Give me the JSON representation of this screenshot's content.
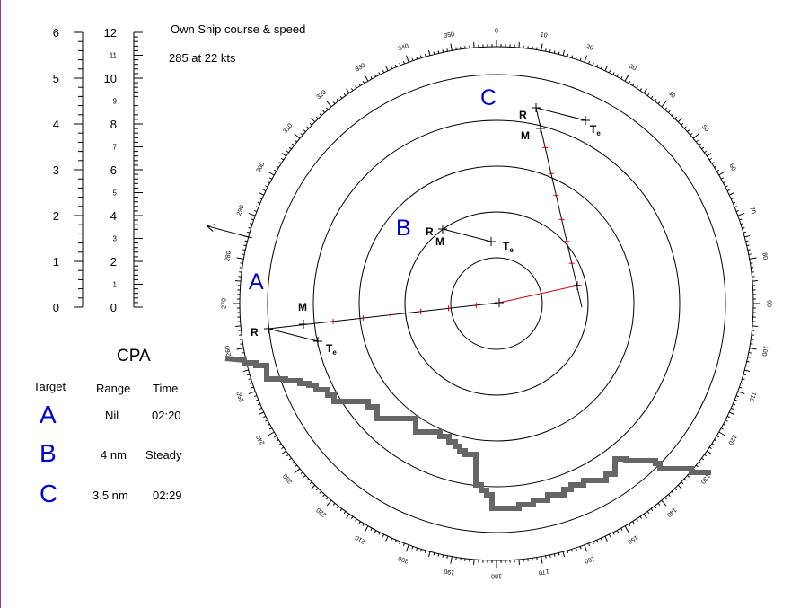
{
  "header": {
    "title": "Own Ship course & speed",
    "value": "285  at 22 kts"
  },
  "scales": {
    "left_labels": [
      "0",
      "1",
      "2",
      "3",
      "4",
      "5",
      "6"
    ],
    "right_labels": [
      "0",
      "1",
      "2",
      "3",
      "4",
      "5",
      "6",
      "7",
      "8",
      "9",
      "10",
      "11",
      "12"
    ]
  },
  "plot": {
    "bearing_labels": [
      "0",
      "10",
      "20",
      "30",
      "40",
      "50",
      "60",
      "70",
      "80",
      "90",
      "100",
      "110",
      "120",
      "130",
      "140",
      "150",
      "160",
      "170",
      "180",
      "190",
      "200",
      "210",
      "220",
      "230",
      "240",
      "250",
      "260",
      "270",
      "280",
      "290",
      "300",
      "310",
      "320",
      "330",
      "340",
      "350"
    ],
    "ring_count": 5,
    "own_ship_course_deg": 285,
    "targets": [
      {
        "letter": "A",
        "labels": {
          "R": "R",
          "M": "M",
          "T": "T",
          "sub": "e"
        }
      },
      {
        "letter": "B",
        "labels": {
          "R": "R",
          "M": "M",
          "T": "T",
          "sub": "e"
        }
      },
      {
        "letter": "C",
        "labels": {
          "R": "R",
          "M": "M",
          "T": "T",
          "sub": "e"
        }
      }
    ],
    "colors": {
      "relative_line": "#000000",
      "cpa_line": "#cc0000",
      "land": "#666666",
      "target_letter": "#0000cc"
    }
  },
  "cpa": {
    "title": "CPA",
    "headers": {
      "target": "Target",
      "range": "Range",
      "time": "Time"
    },
    "rows": [
      {
        "target": "A",
        "range": "Nil",
        "time": "02:20"
      },
      {
        "target": "B",
        "range": "4 nm",
        "time": "Steady"
      },
      {
        "target": "C",
        "range": "3.5 nm",
        "time": "02:29"
      }
    ]
  }
}
